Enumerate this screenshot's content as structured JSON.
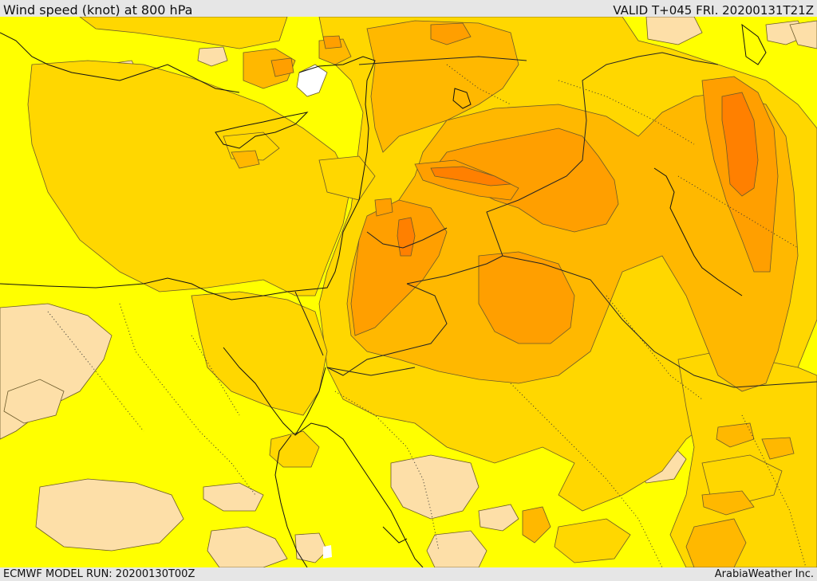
{
  "header": {
    "title": "Wind speed (knot) at 800 hPa",
    "valid": "VALID T+045 FRI. 20200131T21Z"
  },
  "footer": {
    "model_run": "ECMWF MODEL RUN: 20200130T00Z",
    "credit": "ArabiaWeather Inc."
  },
  "map": {
    "colors": {
      "calm": "#ffffff",
      "light": "#fddfa8",
      "low": "#ffff00",
      "moderate": "#ffd700",
      "fresh": "#ffb800",
      "strong": "#ff9f00",
      "gale": "#ff8000"
    }
  }
}
